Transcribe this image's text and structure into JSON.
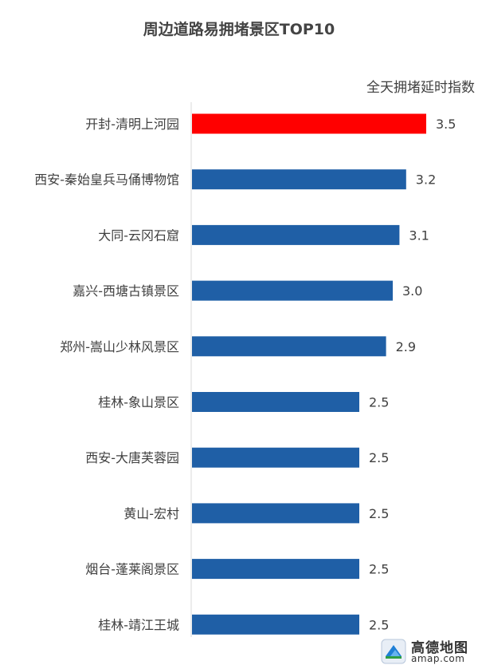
{
  "chart_data": {
    "type": "bar",
    "orientation": "horizontal",
    "title": "周边道路易拥堵景区TOP10",
    "xlabel": "全天拥堵延时指数",
    "categories": [
      "开封-清明上河园",
      "西安-秦始皇兵马俑博物馆",
      "大同-云冈石窟",
      "嘉兴-西塘古镇景区",
      "郑州-嵩山少林风景区",
      "桂林-象山景区",
      "西安-大唐芙蓉园",
      "黄山-宏村",
      "烟台-蓬莱阁景区",
      "桂林-靖江王城"
    ],
    "values": [
      3.5,
      3.2,
      3.1,
      3.0,
      2.9,
      2.5,
      2.5,
      2.5,
      2.5,
      2.5
    ],
    "xlim": [
      0,
      3.5
    ],
    "grid": false,
    "highlight_index": 0,
    "colors": {
      "bar": "#1F5FA6",
      "highlight": "#FF0000"
    }
  },
  "watermark": {
    "brand": "高德地图",
    "url": "amap.com",
    "icon": "amap-logo-icon"
  }
}
